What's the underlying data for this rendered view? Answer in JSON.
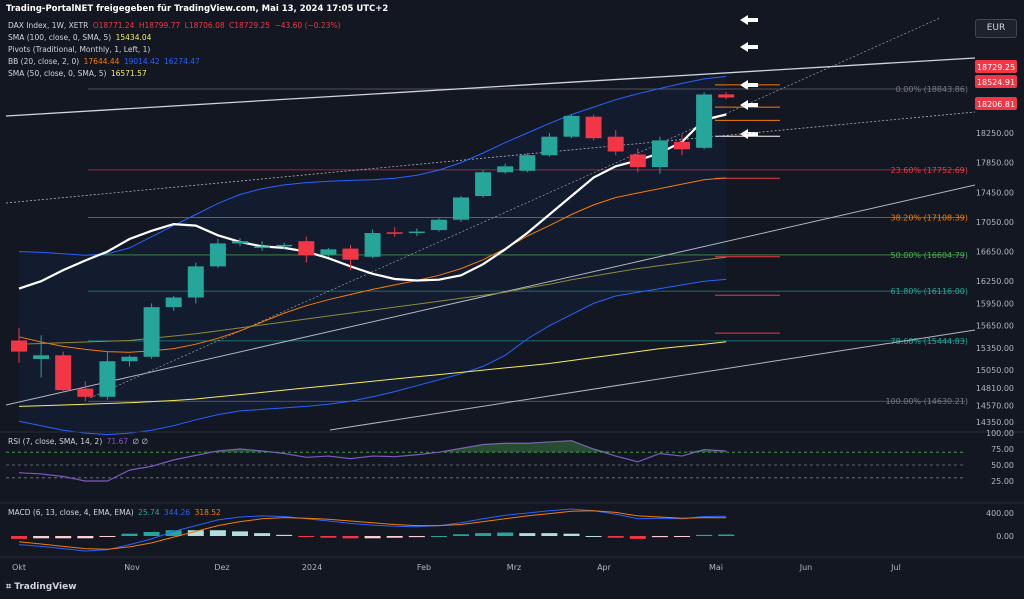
{
  "header": {
    "title": "Trading-PortalNET freigegeben für TradingView.com, Mai 13, 2024 17:05 UTC+2"
  },
  "currency_button": "EUR",
  "branding": "TradingView",
  "legend": {
    "main": {
      "label": "DAX Index, 1W, XETR",
      "o": "O18771.24",
      "h": "H18799.77",
      "l": "L18706.08",
      "c": "C18729.25",
      "chg": "−43.60 (−0.23%)"
    },
    "sma100": {
      "label": "SMA (100, close, 0, SMA, 5)",
      "value": "15434.04",
      "color": "#f5eb5c"
    },
    "pivots": {
      "label": "Pivots (Traditional, Monthly, 1, Left, 1)"
    },
    "bb": {
      "label": "BB (20, close, 2, 0)",
      "basis": "17644.44",
      "upper": "19014.42",
      "lower": "16274.47"
    },
    "sma50": {
      "label": "SMA (50, close, 0, SMA, 5)",
      "value": "16571.57",
      "color": "#f5eb5c"
    },
    "rsi": {
      "label": "RSI (7, close, SMA, 14, 2)",
      "value": "71.67",
      "extra": "∅ ∅"
    },
    "macd": {
      "label": "MACD (6, 13, close, 4, EMA, EMA)",
      "hist": "25.74",
      "macd": "344.26",
      "signal": "318.52"
    }
  },
  "colors": {
    "bg": "#131722",
    "up": "#26a69a",
    "down": "#f23645",
    "grid": "#1e222d",
    "text": "#b2b5be",
    "bb": "#2962ff",
    "basis": "#f57c00",
    "sma": "#f5eb5c",
    "white": "#ffffff"
  },
  "chart_data": {
    "type": "candlestick",
    "symbol": "DAX Index",
    "interval": "1W",
    "x_labels": [
      "Okt",
      "Nov",
      "Dez",
      "2024",
      "Feb",
      "Mrz",
      "Apr",
      "Mai",
      "Jun",
      "Jul"
    ],
    "price_axis_ticks": [
      18250,
      17850,
      17450,
      17050,
      16650,
      16250,
      15950,
      15650,
      15350,
      15050,
      14810,
      14570,
      14350
    ],
    "price_tags": [
      {
        "value": "18729.25",
        "color": "#f23645"
      },
      {
        "value": "18524.91",
        "color": "#f23645"
      },
      {
        "value": "18206.81",
        "color": "#f23645"
      }
    ],
    "fib_levels": [
      {
        "label": "0.00%",
        "value": "18843.86",
        "price": 18843.86
      },
      {
        "label": "23.60%",
        "value": "17752.69",
        "price": 17752.69
      },
      {
        "label": "38.20%",
        "value": "17108.39",
        "price": 17108.39
      },
      {
        "label": "50.00%",
        "value": "16604.79",
        "price": 16604.79
      },
      {
        "label": "61.80%",
        "value": "16116.00",
        "price": 16116.0
      },
      {
        "label": "78.60%",
        "value": "15444.83",
        "price": 15444.83
      },
      {
        "label": "100.00%",
        "value": "14630.21",
        "price": 14630.21
      }
    ],
    "candles": [
      {
        "o": 15450,
        "h": 15620,
        "l": 15150,
        "c": 15300
      },
      {
        "o": 15200,
        "h": 15520,
        "l": 14950,
        "c": 15250
      },
      {
        "o": 15250,
        "h": 15300,
        "l": 14750,
        "c": 14780
      },
      {
        "o": 14800,
        "h": 14900,
        "l": 14630,
        "c": 14690
      },
      {
        "o": 14690,
        "h": 15300,
        "l": 14650,
        "c": 15170
      },
      {
        "o": 15170,
        "h": 15250,
        "l": 15100,
        "c": 15230
      },
      {
        "o": 15230,
        "h": 15950,
        "l": 15200,
        "c": 15900
      },
      {
        "o": 15900,
        "h": 16050,
        "l": 15850,
        "c": 16030
      },
      {
        "o": 16030,
        "h": 16500,
        "l": 15950,
        "c": 16450
      },
      {
        "o": 16450,
        "h": 16820,
        "l": 16430,
        "c": 16760
      },
      {
        "o": 16760,
        "h": 16830,
        "l": 16720,
        "c": 16790
      },
      {
        "o": 16700,
        "h": 16790,
        "l": 16660,
        "c": 16720
      },
      {
        "o": 16720,
        "h": 16770,
        "l": 16680,
        "c": 16740
      },
      {
        "o": 16790,
        "h": 16850,
        "l": 16500,
        "c": 16600
      },
      {
        "o": 16610,
        "h": 16700,
        "l": 16580,
        "c": 16680
      },
      {
        "o": 16690,
        "h": 16740,
        "l": 16400,
        "c": 16540
      },
      {
        "o": 16580,
        "h": 16950,
        "l": 16560,
        "c": 16900
      },
      {
        "o": 16910,
        "h": 16980,
        "l": 16850,
        "c": 16890
      },
      {
        "o": 16900,
        "h": 16960,
        "l": 16860,
        "c": 16920
      },
      {
        "o": 16940,
        "h": 17100,
        "l": 16920,
        "c": 17080
      },
      {
        "o": 17080,
        "h": 17400,
        "l": 17050,
        "c": 17380
      },
      {
        "o": 17400,
        "h": 17750,
        "l": 17380,
        "c": 17720
      },
      {
        "o": 17720,
        "h": 17840,
        "l": 17700,
        "c": 17800
      },
      {
        "o": 17740,
        "h": 17980,
        "l": 17720,
        "c": 17950
      },
      {
        "o": 17950,
        "h": 18250,
        "l": 17930,
        "c": 18200
      },
      {
        "o": 18200,
        "h": 18500,
        "l": 18180,
        "c": 18480
      },
      {
        "o": 18470,
        "h": 18500,
        "l": 18150,
        "c": 18180
      },
      {
        "o": 18200,
        "h": 18290,
        "l": 17950,
        "c": 18000
      },
      {
        "o": 17960,
        "h": 18040,
        "l": 17720,
        "c": 17790
      },
      {
        "o": 17790,
        "h": 18200,
        "l": 17700,
        "c": 18150
      },
      {
        "o": 18130,
        "h": 18230,
        "l": 17950,
        "c": 18030
      },
      {
        "o": 18050,
        "h": 18800,
        "l": 18030,
        "c": 18770
      },
      {
        "o": 18771,
        "h": 18800,
        "l": 18706,
        "c": 18729
      }
    ],
    "sma_fast_white": [
      16150,
      16250,
      16400,
      16530,
      16650,
      16820,
      16930,
      17020,
      17000,
      16870,
      16780,
      16720,
      16700,
      16650,
      16560,
      16450,
      16350,
      16280,
      16260,
      16270,
      16330,
      16480,
      16680,
      16900,
      17150,
      17400,
      17650,
      17800,
      17880,
      17980,
      18130,
      18430,
      18500
    ],
    "sma100": [
      14560,
      14570,
      14580,
      14590,
      14600,
      14610,
      14625,
      14640,
      14660,
      14690,
      14720,
      14750,
      14780,
      14810,
      14840,
      14870,
      14900,
      14930,
      14960,
      14990,
      15020,
      15050,
      15080,
      15110,
      15140,
      15180,
      15220,
      15260,
      15300,
      15340,
      15370,
      15400,
      15434
    ],
    "sma50": [
      15400,
      15410,
      15420,
      15430,
      15440,
      15450,
      15480,
      15510,
      15540,
      15580,
      15620,
      15660,
      15700,
      15740,
      15780,
      15820,
      15860,
      15900,
      15940,
      15980,
      16020,
      16060,
      16100,
      16160,
      16210,
      16270,
      16320,
      16370,
      16420,
      16460,
      16500,
      16540,
      16572
    ],
    "bb_basis": [
      15500,
      15430,
      15370,
      15330,
      15300,
      15290,
      15310,
      15340,
      15400,
      15480,
      15580,
      15700,
      15820,
      15920,
      16000,
      16070,
      16140,
      16200,
      16260,
      16330,
      16420,
      16540,
      16690,
      16860,
      17000,
      17150,
      17280,
      17380,
      17440,
      17500,
      17560,
      17620,
      17644
    ],
    "bb_upper": [
      16650,
      16640,
      16620,
      16600,
      16620,
      16700,
      16850,
      17000,
      17150,
      17300,
      17420,
      17500,
      17550,
      17580,
      17600,
      17610,
      17620,
      17640,
      17680,
      17750,
      17850,
      17980,
      18120,
      18250,
      18380,
      18500,
      18600,
      18700,
      18780,
      18850,
      18920,
      18980,
      19014
    ],
    "bb_lower": [
      14360,
      14300,
      14240,
      14200,
      14180,
      14200,
      14240,
      14300,
      14380,
      14450,
      14500,
      14520,
      14540,
      14560,
      14590,
      14630,
      14690,
      14760,
      14840,
      14920,
      15000,
      15100,
      15250,
      15470,
      15650,
      15800,
      15950,
      16050,
      16100,
      16150,
      16200,
      16250,
      16274
    ],
    "pivot_levels": [
      {
        "price": 18900,
        "color": "#f57c00"
      },
      {
        "price": 18600,
        "color": "#f57c00"
      },
      {
        "price": 18420,
        "color": "#f57c00"
      },
      {
        "price": 18206,
        "color": "#ffffff"
      },
      {
        "price": 17640,
        "color": "#f23645"
      },
      {
        "price": 16580,
        "color": "#f23645"
      },
      {
        "price": 16060,
        "color": "#f23645"
      },
      {
        "price": 15550,
        "color": "#f23645"
      }
    ],
    "rsi": {
      "ticks": [
        "100.00",
        "75.00",
        "50.00",
        "25.00"
      ],
      "values": [
        38,
        36,
        32,
        25,
        25,
        42,
        48,
        58,
        65,
        72,
        75,
        72,
        68,
        62,
        64,
        60,
        64,
        63,
        66,
        70,
        76,
        82,
        84,
        84,
        86,
        88,
        75,
        64,
        55,
        68,
        64,
        74,
        72
      ],
      "levels": [
        70,
        50,
        30
      ]
    },
    "macd": {
      "ticks": [
        "400.00",
        "0.00"
      ],
      "macd": [
        -150,
        -180,
        -220,
        -260,
        -240,
        -150,
        -50,
        80,
        180,
        280,
        330,
        350,
        340,
        300,
        260,
        220,
        190,
        170,
        160,
        180,
        230,
        300,
        360,
        400,
        440,
        470,
        440,
        380,
        300,
        310,
        300,
        340,
        344
      ],
      "signal": [
        -100,
        -140,
        -180,
        -220,
        -230,
        -190,
        -120,
        -20,
        80,
        180,
        250,
        300,
        320,
        310,
        290,
        260,
        230,
        200,
        180,
        180,
        200,
        250,
        300,
        350,
        390,
        430,
        440,
        410,
        350,
        330,
        310,
        320,
        318
      ],
      "hist": [
        -50,
        -40,
        -40,
        -40,
        -10,
        40,
        70,
        100,
        100,
        100,
        80,
        50,
        20,
        -10,
        -30,
        -40,
        -40,
        -30,
        -20,
        0,
        30,
        50,
        60,
        50,
        50,
        40,
        0,
        -30,
        -50,
        -20,
        -10,
        20,
        26
      ]
    }
  }
}
